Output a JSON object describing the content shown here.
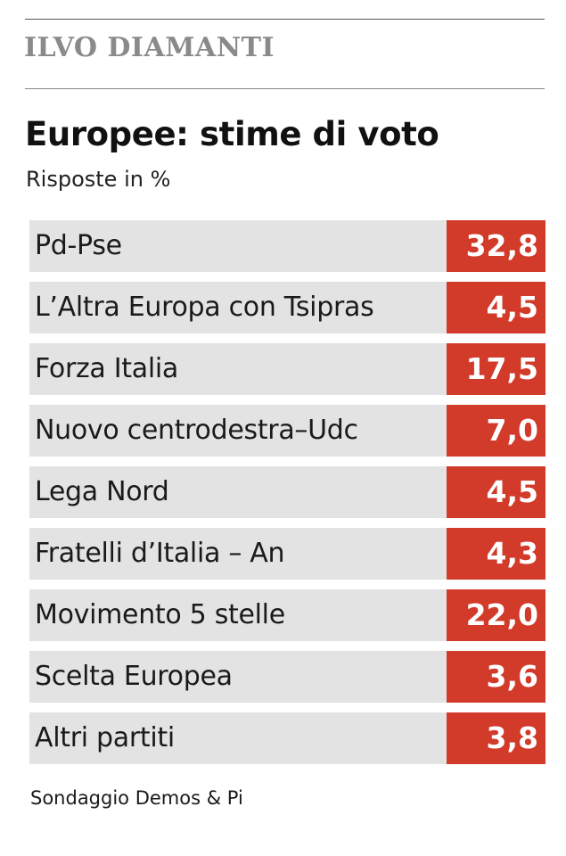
{
  "header": {
    "author": "ILVO DIAMANTI"
  },
  "chart_data": {
    "type": "table",
    "title": "Europee: stime di voto",
    "subtitle": "Risposte in %",
    "categories": [
      "Pd-Pse",
      "L’Altra Europa con Tsipras",
      "Forza Italia",
      "Nuovo centrodestra–Udc",
      "Lega Nord",
      "Fratelli d’Italia – An",
      "Movimento 5 stelle",
      "Scelta Europea",
      "Altri partiti"
    ],
    "values": [
      32.8,
      4.5,
      17.5,
      7.0,
      4.5,
      4.3,
      22.0,
      3.6,
      3.8
    ],
    "value_labels": [
      "32,8",
      "4,5",
      "17,5",
      "7,0",
      "4,5",
      "4,3",
      "22,0",
      "3,6",
      "3,8"
    ],
    "source": "Sondaggio Demos & Pi"
  },
  "colors": {
    "row_background": "#e3e3e4",
    "value_background": "#d23a2a",
    "value_text": "#ffffff",
    "author_text": "#8a8a8a"
  }
}
